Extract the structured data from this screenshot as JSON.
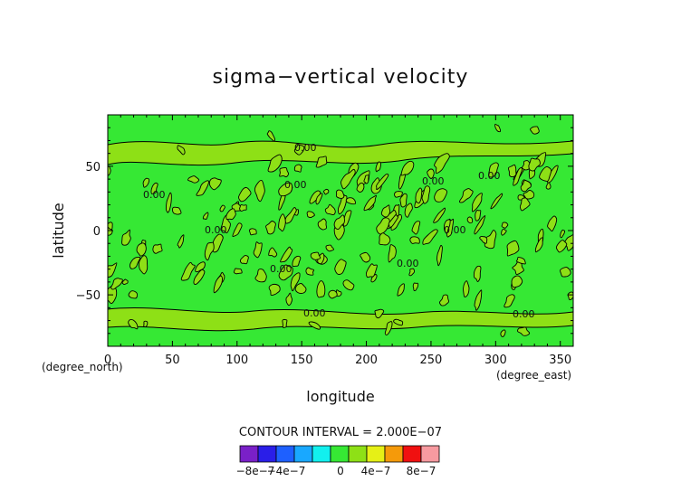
{
  "chart_data": {
    "type": "heatmap",
    "title": "sigma−vertical velocity",
    "xlabel": "longitude",
    "ylabel": "latitude",
    "x_unit": "(degree_east)",
    "y_unit": "(degree_north)",
    "xlim": [
      0,
      360
    ],
    "ylim": [
      -90,
      90
    ],
    "x_ticks": [
      "0",
      "50",
      "100",
      "150",
      "200",
      "250",
      "300",
      "350"
    ],
    "y_ticks": [
      "50",
      "0",
      "−50"
    ],
    "grid": false,
    "contour_interval_text": "CONTOUR INTERVAL = 2.000E−07",
    "contour_labels": [
      "0.00",
      "0.00",
      "0.00",
      "0.00",
      "0.00",
      "0.00",
      "0.00",
      "0.00",
      "0.00",
      "0.00",
      "0.00"
    ],
    "colorbar": {
      "labels": [
        "−8e−7",
        "−4e−7",
        "0",
        "4e−7",
        "8e−7"
      ],
      "colors": [
        "#7a20c8",
        "#2a1ee8",
        "#1e60ff",
        "#19a8ff",
        "#12f0ee",
        "#36e834",
        "#8ee016",
        "#e6f016",
        "#f59a0a",
        "#f01010",
        "#f79aa0"
      ]
    },
    "field": {
      "background_color": "#36e834",
      "blob_color": "#8ee016",
      "description_level": "near zero everywhere"
    }
  }
}
